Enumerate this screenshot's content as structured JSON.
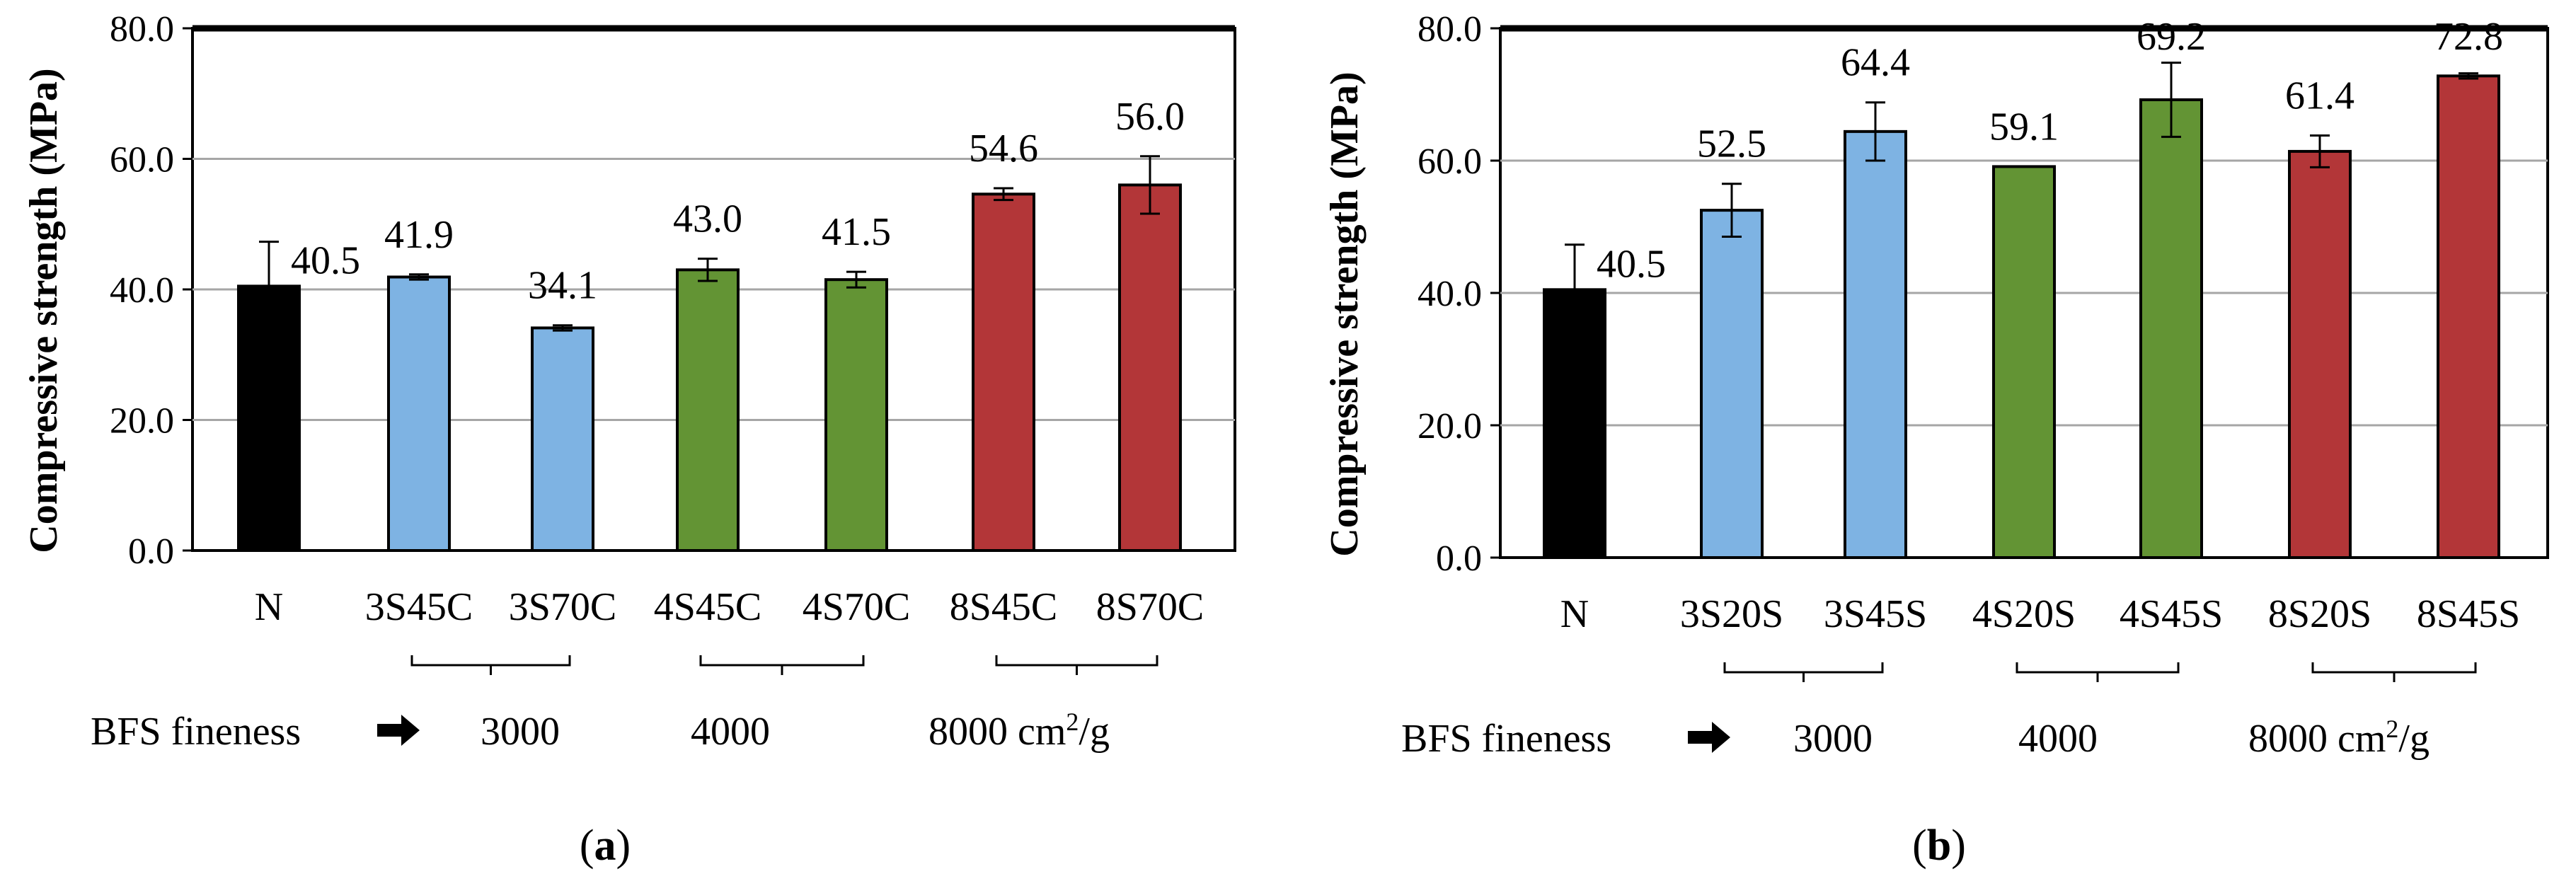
{
  "colors": {
    "N": "#000000",
    "s3000": "#7eb3e3",
    "s4000": "#639434",
    "s8000": "#b33638",
    "gridline": "#a6a6a6"
  },
  "chart_data": [
    {
      "type": "bar",
      "panel_label": "a",
      "ylabel": "Compressive strength (MPa)",
      "ylim": [
        0,
        80
      ],
      "yticks": [
        "0.0",
        "20.0",
        "40.0",
        "60.0",
        "80.0"
      ],
      "categories": [
        "N",
        "3S45C",
        "3S70C",
        "4S45C",
        "4S70C",
        "8S45C",
        "8S70C"
      ],
      "values": [
        40.5,
        41.9,
        34.1,
        43.0,
        41.5,
        54.6,
        56.0
      ],
      "value_labels": [
        "40.5",
        "41.9",
        "34.1",
        "43.0",
        "41.5",
        "54.6",
        "56.0"
      ],
      "errors": [
        6.8,
        0.4,
        0.4,
        1.7,
        1.2,
        0.9,
        4.4
      ],
      "color_groups": [
        "N",
        "s3000",
        "s3000",
        "s4000",
        "s4000",
        "s8000",
        "s8000"
      ],
      "fineness_label": "BFS fineness",
      "fineness_groups": [
        {
          "label": "3000",
          "from": 1,
          "to": 2
        },
        {
          "label": "4000",
          "from": 3,
          "to": 4
        },
        {
          "label": "8000 cm",
          "sup": "2",
          "suffix": "/g",
          "from": 5,
          "to": 6
        }
      ]
    },
    {
      "type": "bar",
      "panel_label": "b",
      "ylabel": "Compressive strength (MPa)",
      "ylim": [
        0,
        80
      ],
      "yticks": [
        "0.0",
        "20.0",
        "40.0",
        "60.0",
        "80.0"
      ],
      "categories": [
        "N",
        "3S20S",
        "3S45S",
        "4S20S",
        "4S45S",
        "8S20S",
        "8S45S"
      ],
      "values": [
        40.5,
        52.5,
        64.4,
        59.1,
        69.2,
        61.4,
        72.8
      ],
      "value_labels": [
        "40.5",
        "52.5",
        "64.4",
        "59.1",
        "69.2",
        "61.4",
        "72.8"
      ],
      "errors": [
        6.8,
        4.0,
        4.4,
        0.0,
        5.6,
        2.4,
        0.4
      ],
      "color_groups": [
        "N",
        "s3000",
        "s3000",
        "s4000",
        "s4000",
        "s8000",
        "s8000"
      ],
      "fineness_label": "BFS fineness",
      "fineness_groups": [
        {
          "label": "3000",
          "from": 1,
          "to": 2
        },
        {
          "label": "4000",
          "from": 3,
          "to": 4
        },
        {
          "label": "8000 cm",
          "sup": "2",
          "suffix": "/g",
          "from": 5,
          "to": 6
        }
      ]
    }
  ]
}
